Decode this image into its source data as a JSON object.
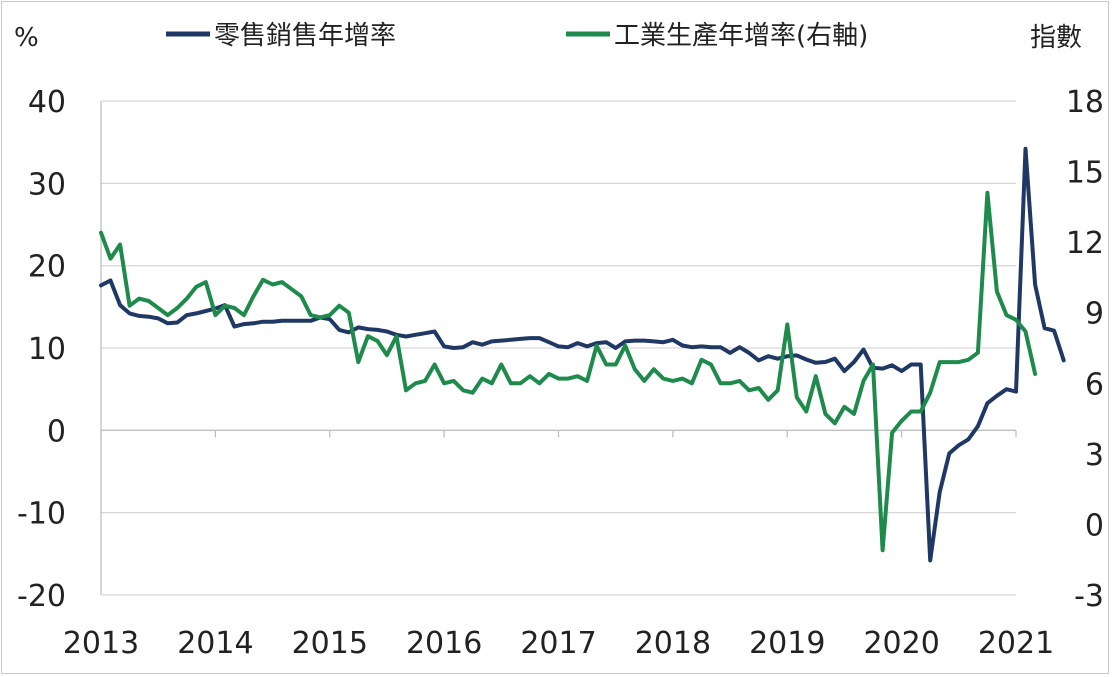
{
  "chart_data": {
    "type": "line",
    "title": "",
    "y_left_unit": "%",
    "y_right_unit": "指數",
    "ylim_left": [
      -20,
      40
    ],
    "ylim_right": [
      -3,
      18
    ],
    "y_left_ticks": [
      "40",
      "30",
      "20",
      "10",
      "0",
      "-10",
      "-20"
    ],
    "y_right_ticks": [
      "18",
      "15",
      "12",
      "9",
      "6",
      "3",
      "0",
      "-3"
    ],
    "x_ticks": [
      "2013",
      "2014",
      "2015",
      "2016",
      "2017",
      "2018",
      "2019",
      "2020",
      "2021"
    ],
    "grid": true,
    "legend_position": "top",
    "series": [
      {
        "name": "零售銷售年增率",
        "axis": "left",
        "color": "#1f3864",
        "start": "2013-01",
        "values": [
          17.6,
          18.2,
          15.2,
          14.2,
          13.9,
          13.8,
          13.6,
          13.0,
          13.1,
          14.0,
          14.2,
          14.5,
          14.8,
          15.2,
          12.6,
          12.9,
          13.0,
          13.2,
          13.2,
          13.3,
          13.3,
          13.3,
          13.3,
          13.7,
          13.5,
          12.2,
          11.9,
          12.5,
          12.3,
          12.2,
          12.0,
          11.6,
          11.4,
          11.6,
          11.8,
          12.0,
          10.2,
          10.0,
          10.1,
          10.7,
          10.4,
          10.8,
          10.9,
          11.0,
          11.1,
          11.2,
          11.2,
          10.7,
          10.2,
          10.1,
          10.6,
          10.2,
          10.6,
          10.7,
          10.0,
          10.8,
          10.9,
          10.9,
          10.8,
          10.7,
          11.0,
          10.3,
          10.1,
          10.2,
          10.1,
          10.1,
          9.4,
          10.1,
          9.4,
          8.5,
          9.0,
          8.7,
          9.0,
          9.1,
          8.6,
          8.2,
          8.3,
          8.7,
          7.2,
          8.3,
          9.8,
          7.6,
          7.5,
          7.9,
          7.2,
          8.0,
          8.0,
          -15.8,
          -7.5,
          -2.8,
          -1.8,
          -1.1,
          0.5,
          3.3,
          4.2,
          5.0,
          4.7,
          34.2,
          17.7,
          12.4,
          12.1,
          8.5
        ]
      },
      {
        "name": "工業生產年增率(右軸)",
        "axis": "right",
        "color": "#1e8a4c",
        "start": "2013-01",
        "values": [
          12.4,
          11.3,
          11.9,
          9.3,
          9.6,
          9.5,
          9.2,
          8.9,
          9.2,
          9.6,
          10.1,
          10.3,
          8.9,
          9.3,
          9.2,
          8.9,
          9.7,
          10.4,
          10.2,
          10.3,
          10.0,
          9.7,
          8.9,
          8.8,
          8.9,
          9.3,
          9.0,
          6.9,
          8.0,
          7.8,
          7.2,
          8.0,
          5.7,
          6.0,
          6.1,
          6.8,
          6.0,
          6.1,
          5.7,
          5.6,
          6.2,
          6.0,
          6.8,
          6.0,
          6.0,
          6.3,
          6.0,
          6.4,
          6.2,
          6.2,
          6.3,
          6.1,
          7.6,
          6.8,
          6.8,
          7.6,
          6.6,
          6.1,
          6.6,
          6.2,
          6.1,
          6.2,
          6.0,
          7.0,
          6.8,
          6.0,
          6.0,
          6.1,
          5.7,
          5.8,
          5.3,
          5.7,
          8.5,
          5.4,
          4.8,
          6.3,
          4.7,
          4.3,
          5.0,
          4.7,
          6.1,
          6.8,
          -1.1,
          3.9,
          4.4,
          4.8,
          4.8,
          5.6,
          6.9,
          6.9,
          6.9,
          7.0,
          7.3,
          14.1,
          9.9,
          8.9,
          8.7,
          8.2,
          6.4
        ]
      }
    ]
  }
}
